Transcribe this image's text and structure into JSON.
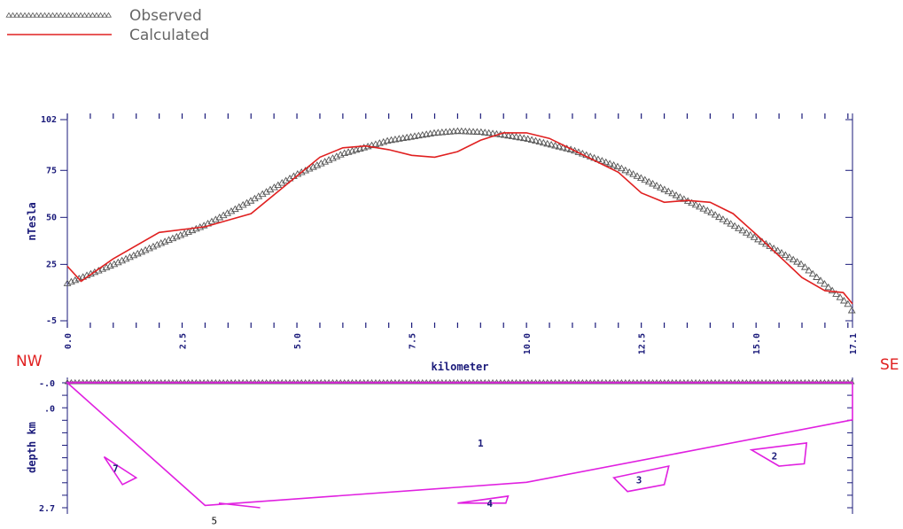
{
  "legend": {
    "observed_label": "Observed",
    "calculated_label": "Calculated"
  },
  "colors": {
    "observed": "#555555",
    "calculated": "#e02020",
    "bodies": "#e020e0",
    "axis": "#1a1a7a",
    "direction_labels": "#e02020"
  },
  "orientation": {
    "left": "NW",
    "right": "SE"
  },
  "chart_data": [
    {
      "type": "line",
      "xlabel": "kilometer",
      "ylabel": "nTesla",
      "xlim": [
        0,
        17.1
      ],
      "ylim": [
        -5,
        102
      ],
      "x_ticks": [
        "0.0",
        "2.5",
        "5.0",
        "7.5",
        "10.0",
        "12.5",
        "15.0",
        "17.1"
      ],
      "y_ticks": [
        "-5",
        "25",
        "50",
        "75",
        "102"
      ],
      "legend_position": "top-left",
      "series": [
        {
          "name": "Observed",
          "style": "triangle-markers",
          "x": [
            0,
            1,
            2,
            3,
            4,
            5,
            6,
            7,
            7.5,
            8,
            8.5,
            9,
            9.5,
            10,
            11,
            12,
            13,
            14,
            15,
            16,
            17,
            17.1
          ],
          "y": [
            15,
            25,
            36,
            46,
            59,
            73,
            84,
            91,
            93,
            95,
            96,
            95.5,
            94,
            92,
            86,
            77,
            65,
            53,
            39,
            25,
            4,
            0
          ]
        },
        {
          "name": "Calculated",
          "style": "line",
          "x": [
            0,
            0.3,
            1,
            2,
            3,
            4,
            5,
            5.5,
            6,
            6.5,
            7,
            7.5,
            8,
            8.5,
            9,
            9.5,
            10,
            10.5,
            11,
            12,
            12.5,
            13,
            13.5,
            14,
            14.5,
            15,
            16,
            16.5,
            16.9,
            17.1
          ],
          "y": [
            24,
            16,
            28,
            42,
            45,
            52,
            72,
            82,
            87,
            88,
            86,
            83,
            82,
            85,
            91,
            95,
            95,
            92,
            86,
            74,
            63,
            58,
            59,
            58,
            52,
            41,
            18,
            11,
            10,
            4
          ]
        }
      ]
    },
    {
      "type": "cross-section",
      "ylabel": "depth km",
      "xlim": [
        0,
        17.1
      ],
      "y_ticks": [
        "-.0",
        ".0",
        "2.7"
      ],
      "surface_marker": "observation points",
      "bodies": [
        {
          "label": "1",
          "vertices": [
            [
              0,
              0
            ],
            [
              3,
              2.65
            ],
            [
              10,
              2.15
            ],
            [
              17.1,
              0.8
            ],
            [
              17.1,
              0
            ]
          ]
        },
        {
          "label": "2",
          "vertices": [
            [
              14.9,
              1.45
            ],
            [
              16.1,
              1.3
            ],
            [
              16.05,
              1.75
            ],
            [
              15.5,
              1.8
            ]
          ]
        },
        {
          "label": "3",
          "vertices": [
            [
              11.9,
              2.05
            ],
            [
              13.1,
              1.8
            ],
            [
              13.0,
              2.2
            ],
            [
              12.2,
              2.35
            ]
          ]
        },
        {
          "label": "4",
          "vertices": [
            [
              8.5,
              2.6
            ],
            [
              9.6,
              2.45
            ],
            [
              9.55,
              2.6
            ]
          ]
        },
        {
          "label": "5",
          "vertices": [
            [
              3.3,
              2.6
            ],
            [
              4.2,
              2.7
            ]
          ]
        },
        {
          "label": "7",
          "vertices": [
            [
              0.8,
              1.6
            ],
            [
              1.5,
              2.05
            ],
            [
              1.2,
              2.2
            ]
          ]
        }
      ]
    }
  ]
}
